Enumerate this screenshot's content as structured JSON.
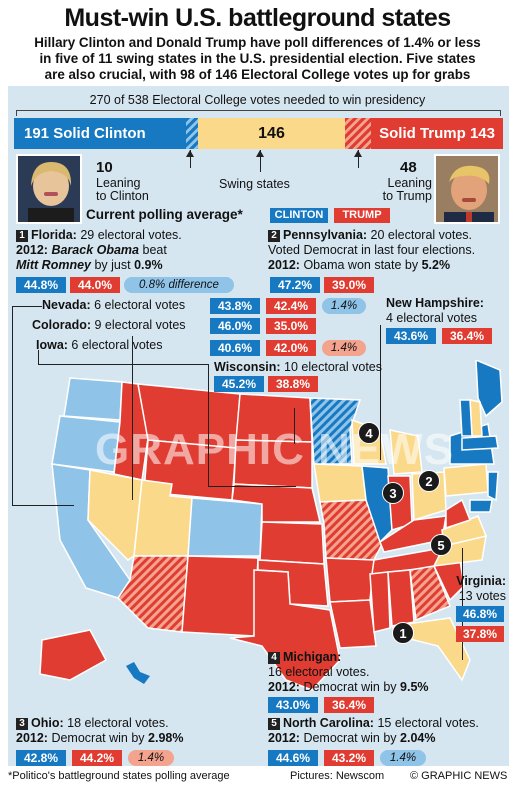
{
  "header": {
    "title": "Must-win U.S. battleground states",
    "subtitle_lines": [
      "Hillary Clinton and Donald Trump have poll differences of 1.4% or less",
      "in five of 11 swing states in the U.S. presidential election. Five states",
      "are also crucial, with 98 of 146 Electoral College votes up for grabs"
    ]
  },
  "votes_needed": "270 of 538 Electoral College votes needed to win presidency",
  "bar": {
    "solid_clinton": "191 Solid Clinton",
    "swing": "146",
    "solid_trump": "Solid Trump 143",
    "leaning_clinton_num": "10",
    "leaning_clinton_label": [
      "Leaning",
      "to Clinton"
    ],
    "swing_label": "Swing states",
    "leaning_trump_num": "48",
    "leaning_trump_label": [
      "Leaning",
      "to Trump"
    ]
  },
  "legend": {
    "current_polling": "Current polling average*",
    "clinton": "CLINTON",
    "trump": "TRUMP"
  },
  "states": {
    "florida": {
      "num": "1",
      "l1_name": "Florida:",
      "l1_rest": " 29 electoral votes.",
      "l2_a": "2012: ",
      "l2_b": "Barack Obama",
      "l2_c": " beat",
      "l3_a": "Mitt Romney",
      "l3_b": " by just ",
      "l3_c": "0.9%",
      "clinton": "44.8%",
      "trump": "44.0%",
      "diff": "0.8% difference"
    },
    "pennsylvania": {
      "num": "2",
      "l1_name": "Pennsylvania:",
      "l1_rest": " 20 electoral votes.",
      "l2": "Voted Democrat in last four elections.",
      "l3_a": "2012:",
      "l3_b": " Obama won state by ",
      "l3_c": "5.2%",
      "clinton": "47.2%",
      "trump": "39.0%"
    },
    "nevada": {
      "name": "Nevada:",
      "rest": " 6 electoral votes",
      "clinton": "43.8%",
      "trump": "42.4%",
      "diff": "1.4%"
    },
    "colorado": {
      "name": "Colorado:",
      "rest": " 9 electoral votes",
      "clinton": "46.0%",
      "trump": "35.0%"
    },
    "iowa": {
      "name": "Iowa:",
      "rest": " 6 electoral votes",
      "clinton": "40.6%",
      "trump": "42.0%",
      "diff": "1.4%"
    },
    "new_hampshire": {
      "name": "New Hampshire:",
      "rest": "4 electoral votes",
      "clinton": "43.6%",
      "trump": "36.4%"
    },
    "wisconsin": {
      "name": "Wisconsin:",
      "rest": " 10 electoral votes",
      "clinton": "45.2%",
      "trump": "38.8%"
    },
    "virginia": {
      "name": "Virginia:",
      "l2": "13 votes",
      "clinton": "46.8%",
      "trump": "37.8%"
    },
    "michigan": {
      "num": "4",
      "name": "Michigan:",
      "l2": "16 electoral votes.",
      "l3_a": "2012:",
      "l3_b": " Democrat win by ",
      "l3_c": "9.5%",
      "clinton": "43.0%",
      "trump": "36.4%"
    },
    "ohio": {
      "num": "3",
      "name": "Ohio:",
      "rest": " 18 electoral votes.",
      "l2_a": "2012:",
      "l2_b": " Democrat win by ",
      "l2_c": "2.98%",
      "clinton": "42.8%",
      "trump": "44.2%",
      "diff": "1.4%"
    },
    "north_carolina": {
      "num": "5",
      "name": "North Carolina:",
      "rest": " 15 electoral votes.",
      "l2_a": "2012:",
      "l2_b": " Democrat win by ",
      "l2_c": "2.04%",
      "clinton": "44.6%",
      "trump": "43.2%",
      "diff": "1.4%"
    }
  },
  "map_markers": [
    "1",
    "2",
    "3",
    "4",
    "5"
  ],
  "watermark": "GRAPHIC NEWS",
  "footer": {
    "note": "*Politico's battleground states polling average",
    "credit": "Pictures: Newscom",
    "copyright": "© GRAPHIC NEWS"
  },
  "colors": {
    "clinton_blue": "#1679c1",
    "trump_red": "#e03c31",
    "swing_yellow": "#fbd98a",
    "lean_blue": "#8fc3e8",
    "lean_red": "#f3a38e",
    "panel": "#d6e6f0"
  },
  "icons": [
    "clinton-photo",
    "trump-photo"
  ]
}
